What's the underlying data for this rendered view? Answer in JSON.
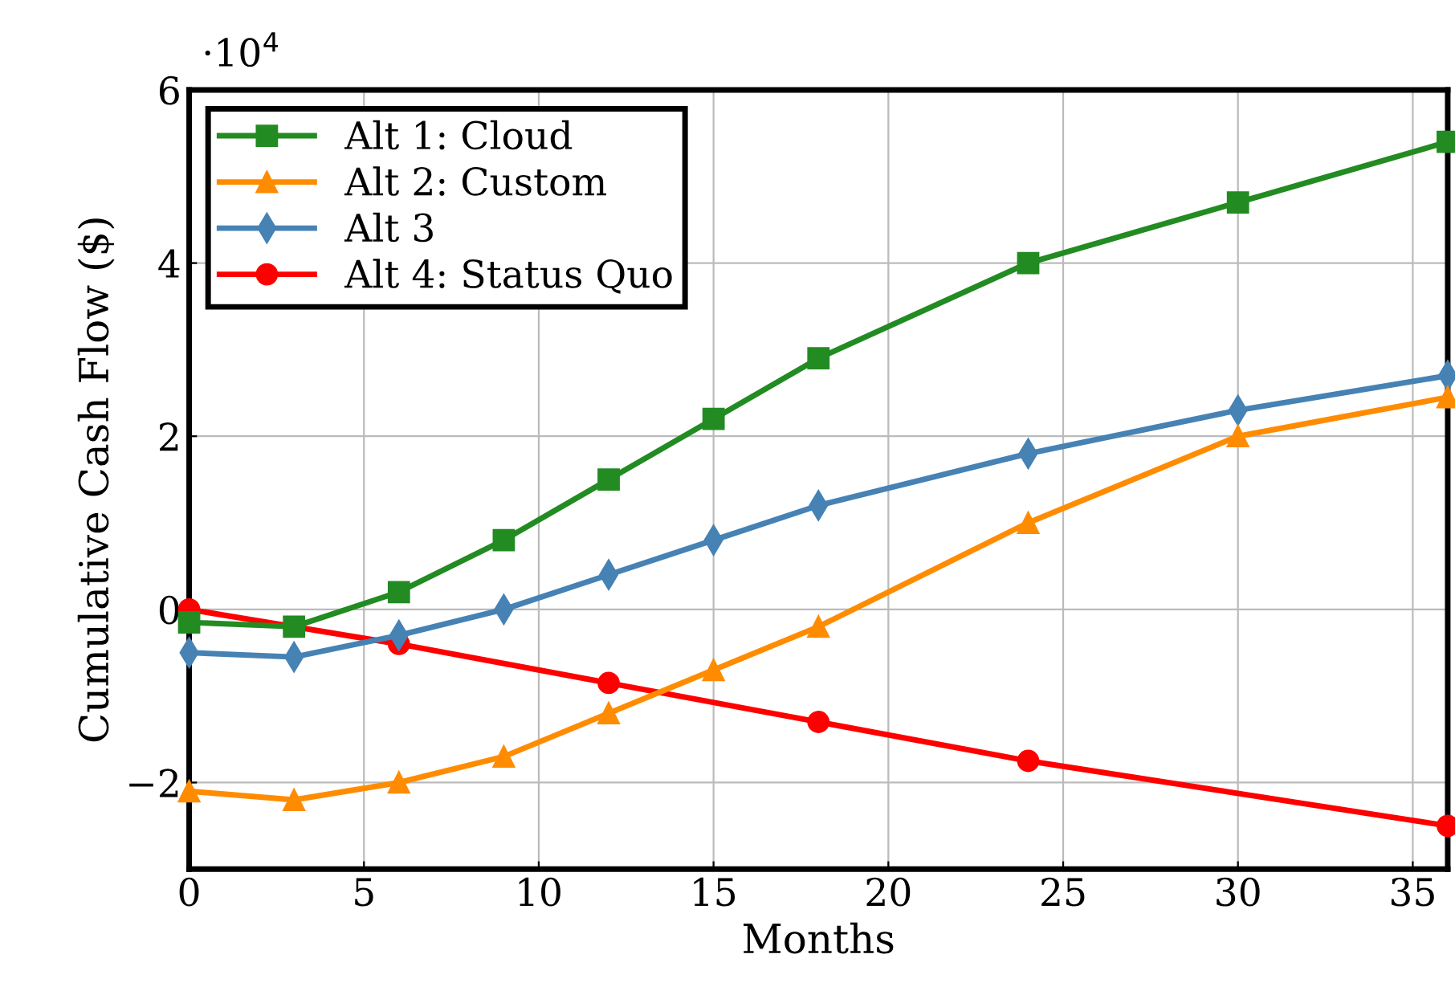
{
  "chart_data": {
    "type": "line",
    "xlabel": "Months",
    "ylabel": "Cumulative Cash Flow ($)",
    "annotations": [
      "·10$^{4}$"
    ],
    "xlim": [
      0,
      36
    ],
    "ylim": [
      -3,
      6
    ],
    "xticks": [
      0,
      5,
      10,
      15,
      20,
      25,
      30,
      35
    ],
    "yticks": [
      {
        "value": -2,
        "label": "−2"
      },
      0,
      2,
      4,
      6
    ],
    "grid": true,
    "legend": "top left",
    "line_style": "solid",
    "series": [
      {
        "name": "Alt 1: Cloud",
        "color": "#228b22",
        "marker": "square",
        "x": [
          0,
          3,
          6,
          9,
          12,
          15,
          18,
          24,
          30,
          36
        ],
        "values": [
          -0.15,
          -0.2,
          0.2,
          0.8,
          1.5,
          2.2,
          2.9,
          4.0,
          4.7,
          5.4
        ]
      },
      {
        "name": "Alt 2: Custom",
        "color": "#ff8c00",
        "marker": "triangle",
        "x": [
          0,
          3,
          6,
          9,
          12,
          15,
          18,
          24,
          30,
          36
        ],
        "values": [
          -2.1,
          -2.2,
          -2.0,
          -1.7,
          -1.2,
          -0.7,
          -0.2,
          1.0,
          2.0,
          2.45
        ]
      },
      {
        "name": "Alt 3",
        "color": "#4682b4",
        "marker": "diamond",
        "x": [
          0,
          3,
          6,
          9,
          12,
          15,
          18,
          24,
          30,
          36
        ],
        "values": [
          -0.5,
          -0.55,
          -0.3,
          0,
          0.4,
          0.8,
          1.2,
          1.8,
          2.3,
          2.7
        ]
      },
      {
        "name": "Alt 4: Status Quo",
        "color": "#ff0000",
        "marker": "circle",
        "x": [
          0,
          6,
          12,
          18,
          24,
          36
        ],
        "values": [
          0,
          -0.4,
          -0.85,
          -1.3,
          -1.75,
          -2.5
        ]
      }
    ]
  }
}
